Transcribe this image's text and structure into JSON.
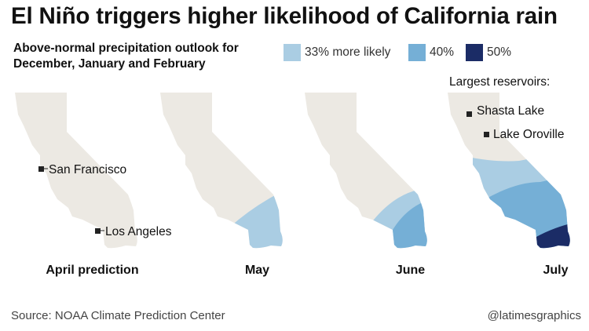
{
  "title": "El Niño triggers higher likelihood of California rain",
  "subtitle_line1": "Above-normal precipitation outlook for",
  "subtitle_line2": "December, January and February",
  "legend": [
    {
      "label": "33% more likely",
      "color": "#aacde3"
    },
    {
      "label": "40%",
      "color": "#75afd6"
    },
    {
      "label": "50%",
      "color": "#1b2c66"
    }
  ],
  "land_color": "#ece9e3",
  "city_marker_color": "#222222",
  "panels": [
    {
      "label": "April prediction",
      "zones": []
    },
    {
      "label": "May",
      "zones": [
        "33%"
      ]
    },
    {
      "label": "June",
      "zones": [
        "33%",
        "40%"
      ]
    },
    {
      "label": "July",
      "zones": [
        "33%",
        "40%",
        "50%"
      ]
    }
  ],
  "cities": [
    {
      "name": "San Francisco",
      "panel": "April prediction"
    },
    {
      "name": "Los Angeles",
      "panel": "April prediction"
    }
  ],
  "reservoirs": {
    "heading": "Largest reservoirs:",
    "panel": "July",
    "items": [
      {
        "name": "Shasta Lake"
      },
      {
        "name": "Lake Oroville"
      }
    ]
  },
  "source": "Source: NOAA Climate Prediction Center",
  "credit": "@latimesgraphics"
}
